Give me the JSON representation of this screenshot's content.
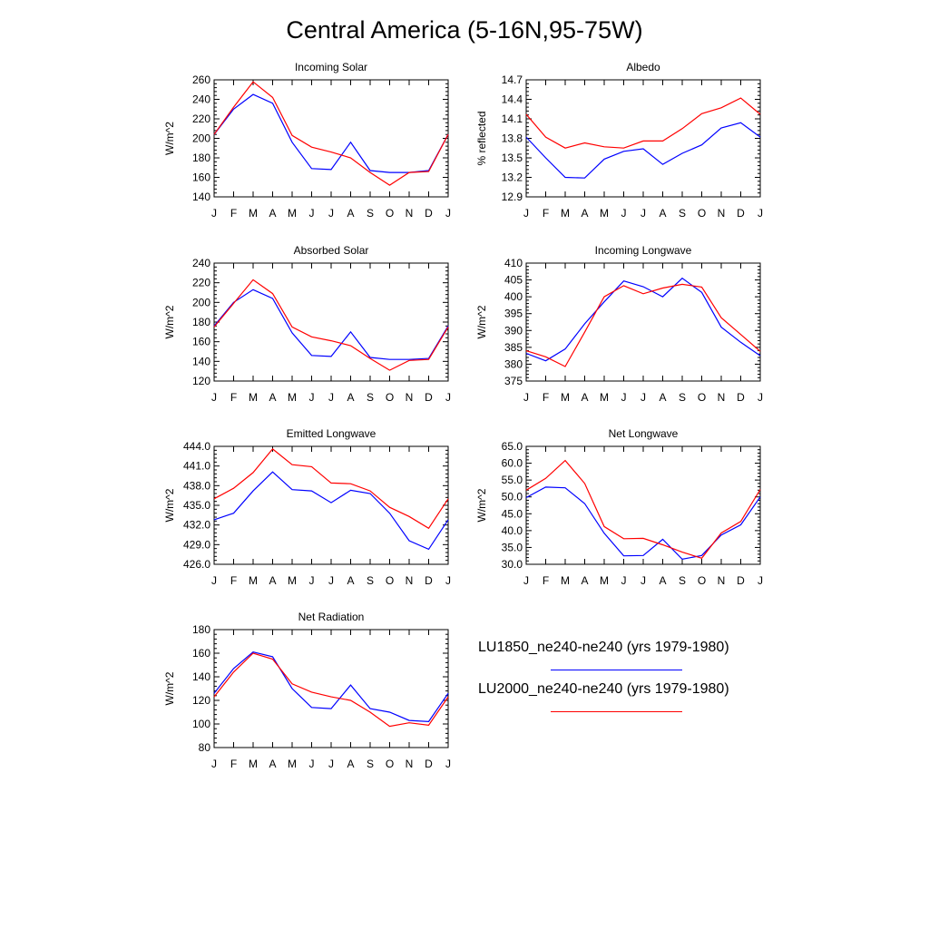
{
  "title": "Central America (5-16N,95-75W)",
  "colors": {
    "series1": "#0000ff",
    "series2": "#ff0000"
  },
  "legend": [
    {
      "label": "LU1850_ne240-ne240 (yrs 1979-1980)",
      "color": "#0000ff"
    },
    {
      "label": "LU2000_ne240-ne240 (yrs 1979-1980)",
      "color": "#ff0000"
    }
  ],
  "chart_data": [
    {
      "type": "line",
      "title": "Incoming Solar",
      "ylabel": "W/m^2",
      "categories": [
        "J",
        "F",
        "M",
        "A",
        "M",
        "J",
        "J",
        "A",
        "S",
        "O",
        "N",
        "D",
        "J"
      ],
      "ylim": [
        140,
        260
      ],
      "yticks": [
        "140",
        "160",
        "180",
        "200",
        "220",
        "240",
        "260"
      ],
      "series": [
        {
          "name": "LU1850_ne240-ne240 (yrs 1979-1980)",
          "values": [
            204,
            230,
            245,
            236,
            196,
            169,
            168,
            196,
            167,
            165,
            165,
            167,
            204
          ]
        },
        {
          "name": "LU2000_ne240-ne240 (yrs 1979-1980)",
          "values": [
            204,
            232,
            258,
            242,
            203,
            191,
            186,
            180,
            165,
            152,
            165,
            166,
            204
          ]
        }
      ]
    },
    {
      "type": "line",
      "title": "Albedo",
      "ylabel": "% reflected",
      "categories": [
        "J",
        "F",
        "M",
        "A",
        "M",
        "J",
        "J",
        "A",
        "S",
        "O",
        "N",
        "D",
        "J"
      ],
      "ylim": [
        12.9,
        14.7
      ],
      "yticks": [
        "12.9",
        "13.2",
        "13.5",
        "13.8",
        "14.1",
        "14.4",
        "14.7"
      ],
      "series": [
        {
          "name": "LU1850_ne240-ne240 (yrs 1979-1980)",
          "values": [
            13.82,
            13.5,
            13.2,
            13.19,
            13.48,
            13.6,
            13.64,
            13.4,
            13.57,
            13.7,
            13.96,
            14.04,
            13.82
          ]
        },
        {
          "name": "LU2000_ne240-ne240 (yrs 1979-1980)",
          "values": [
            14.17,
            13.82,
            13.65,
            13.73,
            13.67,
            13.65,
            13.76,
            13.76,
            13.95,
            14.18,
            14.27,
            14.42,
            14.17
          ]
        }
      ]
    },
    {
      "type": "line",
      "title": "Absorbed Solar",
      "ylabel": "W/m^2",
      "categories": [
        "J",
        "F",
        "M",
        "A",
        "M",
        "J",
        "J",
        "A",
        "S",
        "O",
        "N",
        "D",
        "J"
      ],
      "ylim": [
        120,
        240
      ],
      "yticks": [
        "120",
        "140",
        "160",
        "180",
        "200",
        "220",
        "240"
      ],
      "series": [
        {
          "name": "LU1850_ne240-ne240 (yrs 1979-1980)",
          "values": [
            176,
            200,
            213,
            204,
            169,
            146,
            145,
            170,
            144,
            142,
            142,
            143,
            176
          ]
        },
        {
          "name": "LU2000_ne240-ne240 (yrs 1979-1980)",
          "values": [
            175,
            199,
            223,
            209,
            175,
            165,
            161,
            156,
            143,
            131,
            141,
            142,
            175
          ]
        }
      ]
    },
    {
      "type": "line",
      "title": "Incoming Longwave",
      "ylabel": "W/m^2",
      "categories": [
        "J",
        "F",
        "M",
        "A",
        "M",
        "J",
        "J",
        "A",
        "S",
        "O",
        "N",
        "D",
        "J"
      ],
      "ylim": [
        375,
        410
      ],
      "yticks": [
        "375",
        "380",
        "385",
        "390",
        "395",
        "400",
        "405",
        "410"
      ],
      "series": [
        {
          "name": "LU1850_ne240-ne240 (yrs 1979-1980)",
          "values": [
            383.2,
            381.0,
            384.5,
            392.0,
            398.5,
            404.7,
            403.0,
            400.0,
            405.5,
            401.3,
            391.0,
            386.5,
            382.5
          ]
        },
        {
          "name": "LU2000_ne240-ne240 (yrs 1979-1980)",
          "values": [
            384.0,
            382.2,
            379.3,
            389.5,
            400.0,
            403.3,
            400.9,
            402.6,
            403.7,
            402.9,
            393.8,
            388.8,
            383.8
          ]
        }
      ]
    },
    {
      "type": "line",
      "title": "Emitted Longwave",
      "ylabel": "W/m^2",
      "categories": [
        "J",
        "F",
        "M",
        "A",
        "M",
        "J",
        "J",
        "A",
        "S",
        "O",
        "N",
        "D",
        "J"
      ],
      "ylim": [
        426.0,
        444.0
      ],
      "yticks": [
        "426.0",
        "429.0",
        "432.0",
        "435.0",
        "438.0",
        "441.0",
        "444.0"
      ],
      "series": [
        {
          "name": "LU1850_ne240-ne240 (yrs 1979-1980)",
          "values": [
            432.8,
            433.8,
            437.2,
            440.1,
            437.4,
            437.2,
            435.4,
            437.3,
            436.8,
            433.8,
            429.6,
            428.3,
            432.8
          ]
        },
        {
          "name": "LU2000_ne240-ne240 (yrs 1979-1980)",
          "values": [
            436.0,
            437.6,
            440.0,
            443.6,
            441.2,
            440.9,
            438.4,
            438.3,
            437.2,
            434.7,
            433.3,
            431.5,
            436.0
          ]
        }
      ]
    },
    {
      "type": "line",
      "title": "Net Longwave",
      "ylabel": "W/m^2",
      "categories": [
        "J",
        "F",
        "M",
        "A",
        "M",
        "J",
        "J",
        "A",
        "S",
        "O",
        "N",
        "D",
        "J"
      ],
      "ylim": [
        30.0,
        65.0
      ],
      "yticks": [
        "30.0",
        "35.0",
        "40.0",
        "45.0",
        "50.0",
        "55.0",
        "60.0",
        "65.0"
      ],
      "series": [
        {
          "name": "LU1850_ne240-ne240 (yrs 1979-1980)",
          "values": [
            49.8,
            52.9,
            52.7,
            48.0,
            39.2,
            32.5,
            32.6,
            37.4,
            31.5,
            32.6,
            38.7,
            41.7,
            50.0
          ]
        },
        {
          "name": "LU2000_ne240-ne240 (yrs 1979-1980)",
          "values": [
            52.0,
            55.5,
            60.8,
            54.0,
            41.2,
            37.6,
            37.7,
            35.8,
            33.6,
            31.8,
            39.3,
            42.7,
            52.2
          ]
        }
      ]
    },
    {
      "type": "line",
      "title": "Net Radiation",
      "ylabel": "W/m^2",
      "categories": [
        "J",
        "F",
        "M",
        "A",
        "M",
        "J",
        "J",
        "A",
        "S",
        "O",
        "N",
        "D",
        "J"
      ],
      "ylim": [
        80,
        180
      ],
      "yticks": [
        "80",
        "100",
        "120",
        "140",
        "160",
        "180"
      ],
      "series": [
        {
          "name": "LU1850_ne240-ne240 (yrs 1979-1980)",
          "values": [
            126,
            147,
            161,
            157,
            130,
            114,
            113,
            133,
            113,
            110,
            103,
            102,
            126
          ]
        },
        {
          "name": "LU2000_ne240-ne240 (yrs 1979-1980)",
          "values": [
            123,
            144,
            160,
            155,
            134,
            127,
            123,
            120,
            110,
            98,
            101,
            99,
            123
          ]
        }
      ]
    }
  ]
}
